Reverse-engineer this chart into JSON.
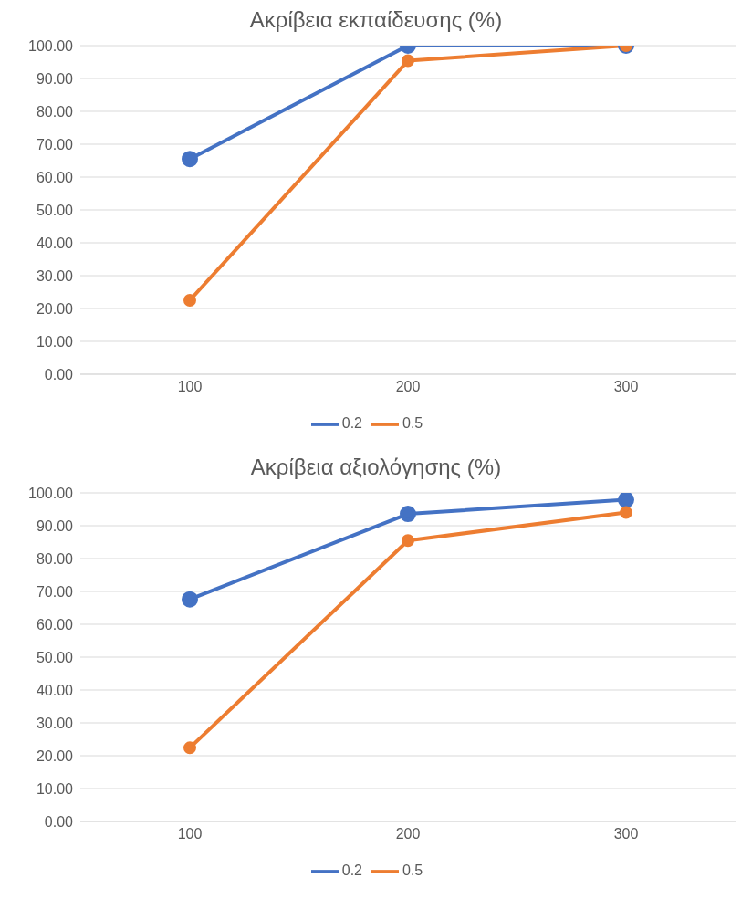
{
  "chart_data": [
    {
      "type": "line",
      "title": "Ακρίβεια εκπαίδευσης (%)",
      "categories": [
        "100",
        "200",
        "300"
      ],
      "series": [
        {
          "name": "0.2",
          "color": "#4472c4",
          "values": [
            65.5,
            100,
            100
          ]
        },
        {
          "name": "0.5",
          "color": "#ed7d31",
          "values": [
            22.5,
            95.4,
            100
          ]
        }
      ],
      "ylim": [
        0,
        100
      ],
      "yticks": [
        {
          "value": 0,
          "label": "0.00"
        },
        {
          "value": 10,
          "label": "10.00"
        },
        {
          "value": 20,
          "label": "20.00"
        },
        {
          "value": 30,
          "label": "30.00"
        },
        {
          "value": 40,
          "label": "40.00"
        },
        {
          "value": 50,
          "label": "50.00"
        },
        {
          "value": 60,
          "label": "60.00"
        },
        {
          "value": 70,
          "label": "70.00"
        },
        {
          "value": 80,
          "label": "80.00"
        },
        {
          "value": 90,
          "label": "90.00"
        },
        {
          "value": 100,
          "label": "100.00"
        }
      ],
      "grid": "y",
      "legend": "bottom",
      "marker": "circle",
      "line_style": "solid"
    },
    {
      "type": "line",
      "title": "Ακρίβεια αξιολόγησης (%)",
      "categories": [
        "100",
        "200",
        "300"
      ],
      "series": [
        {
          "name": "0.2",
          "color": "#4472c4",
          "values": [
            67.6,
            93.6,
            97.9
          ]
        },
        {
          "name": "0.5",
          "color": "#ed7d31",
          "values": [
            22.4,
            85.5,
            94
          ]
        }
      ],
      "ylim": [
        0,
        100
      ],
      "yticks": [
        {
          "value": 0,
          "label": "0.00"
        },
        {
          "value": 10,
          "label": "10.00"
        },
        {
          "value": 20,
          "label": "20.00"
        },
        {
          "value": 30,
          "label": "30.00"
        },
        {
          "value": 40,
          "label": "40.00"
        },
        {
          "value": 50,
          "label": "50.00"
        },
        {
          "value": 60,
          "label": "60.00"
        },
        {
          "value": 70,
          "label": "70.00"
        },
        {
          "value": 80,
          "label": "80.00"
        },
        {
          "value": 90,
          "label": "90.00"
        },
        {
          "value": 100,
          "label": "100.00"
        }
      ],
      "grid": "y",
      "legend": "bottom",
      "marker": "circle",
      "line_style": "solid"
    }
  ]
}
